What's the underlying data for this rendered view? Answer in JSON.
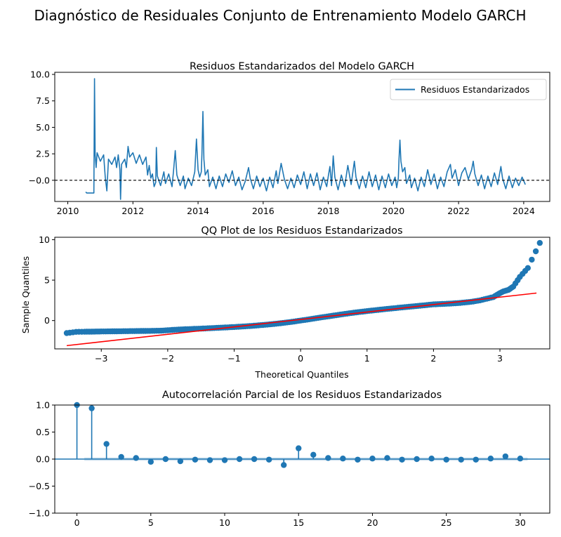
{
  "figure": {
    "suptitle": "Diagnóstico de Residuales Conjunto de Entrenamiento Modelo GARCH"
  },
  "chart_data": [
    {
      "type": "line",
      "title": "Residuos Estandarizados del Modelo GARCH",
      "xlabel": "",
      "ylabel": "",
      "xlim": [
        2009.6,
        2024.8
      ],
      "ylim": [
        -2.0,
        10.2
      ],
      "xticks": [
        "2010",
        "2012",
        "2014",
        "2016",
        "2018",
        "2020",
        "2022",
        "2024"
      ],
      "yticks": [
        "−0.0",
        "2.5",
        "5.0",
        "7.5",
        "10.0"
      ],
      "legend": {
        "position": "top-right",
        "entries": [
          "Residuos Estandarizados"
        ]
      },
      "reference_line": {
        "y": 0,
        "style": "dashed",
        "color": "#000000"
      },
      "series": [
        {
          "name": "Residuos Estandarizados",
          "color": "#1f77b4",
          "points": [
            [
              2010.55,
              -1.1
            ],
            [
              2010.58,
              -1.2
            ],
            [
              2010.8,
              -1.2
            ],
            [
              2010.82,
              9.6
            ],
            [
              2010.84,
              2.4
            ],
            [
              2010.87,
              1.2
            ],
            [
              2010.9,
              2.6
            ],
            [
              2011.0,
              1.8
            ],
            [
              2011.1,
              2.4
            ],
            [
              2011.15,
              0.3
            ],
            [
              2011.2,
              -1.0
            ],
            [
              2011.25,
              2.0
            ],
            [
              2011.35,
              1.5
            ],
            [
              2011.45,
              2.2
            ],
            [
              2011.5,
              1.2
            ],
            [
              2011.55,
              2.4
            ],
            [
              2011.6,
              1.0
            ],
            [
              2011.62,
              -1.8
            ],
            [
              2011.65,
              1.5
            ],
            [
              2011.75,
              2.0
            ],
            [
              2011.8,
              1.2
            ],
            [
              2011.85,
              3.2
            ],
            [
              2011.9,
              2.2
            ],
            [
              2012.0,
              2.6
            ],
            [
              2012.1,
              1.6
            ],
            [
              2012.2,
              2.4
            ],
            [
              2012.3,
              1.5
            ],
            [
              2012.4,
              2.2
            ],
            [
              2012.45,
              0.5
            ],
            [
              2012.5,
              1.4
            ],
            [
              2012.55,
              0.2
            ],
            [
              2012.6,
              0.6
            ],
            [
              2012.65,
              -0.6
            ],
            [
              2012.7,
              -0.2
            ],
            [
              2012.72,
              3.1
            ],
            [
              2012.75,
              0.4
            ],
            [
              2012.85,
              -0.5
            ],
            [
              2012.95,
              0.8
            ],
            [
              2013.0,
              -0.3
            ],
            [
              2013.1,
              0.6
            ],
            [
              2013.2,
              -0.6
            ],
            [
              2013.25,
              1.0
            ],
            [
              2013.3,
              2.8
            ],
            [
              2013.35,
              0.5
            ],
            [
              2013.45,
              -0.5
            ],
            [
              2013.55,
              0.4
            ],
            [
              2013.6,
              -0.8
            ],
            [
              2013.7,
              0.2
            ],
            [
              2013.8,
              -0.5
            ],
            [
              2013.9,
              0.8
            ],
            [
              2013.95,
              3.9
            ],
            [
              2014.0,
              1.0
            ],
            [
              2014.05,
              0.3
            ],
            [
              2014.1,
              0.8
            ],
            [
              2014.12,
              2.5
            ],
            [
              2014.15,
              6.5
            ],
            [
              2014.18,
              2.0
            ],
            [
              2014.22,
              0.5
            ],
            [
              2014.3,
              1.0
            ],
            [
              2014.35,
              -0.6
            ],
            [
              2014.45,
              0.3
            ],
            [
              2014.55,
              -0.8
            ],
            [
              2014.65,
              0.4
            ],
            [
              2014.75,
              -0.6
            ],
            [
              2014.85,
              0.6
            ],
            [
              2014.95,
              -0.2
            ],
            [
              2015.05,
              0.9
            ],
            [
              2015.15,
              -0.5
            ],
            [
              2015.25,
              0.3
            ],
            [
              2015.35,
              -0.9
            ],
            [
              2015.45,
              -0.1
            ],
            [
              2015.55,
              1.2
            ],
            [
              2015.6,
              0.2
            ],
            [
              2015.7,
              -0.8
            ],
            [
              2015.8,
              0.4
            ],
            [
              2015.9,
              -0.6
            ],
            [
              2016.0,
              0.2
            ],
            [
              2016.1,
              -1.0
            ],
            [
              2016.2,
              0.3
            ],
            [
              2016.3,
              -0.7
            ],
            [
              2016.4,
              0.9
            ],
            [
              2016.45,
              -0.3
            ],
            [
              2016.55,
              1.6
            ],
            [
              2016.65,
              0.1
            ],
            [
              2016.75,
              -0.8
            ],
            [
              2016.85,
              0.2
            ],
            [
              2016.95,
              -0.7
            ],
            [
              2017.05,
              0.5
            ],
            [
              2017.15,
              -0.4
            ],
            [
              2017.25,
              0.8
            ],
            [
              2017.35,
              -0.8
            ],
            [
              2017.45,
              0.6
            ],
            [
              2017.55,
              -0.5
            ],
            [
              2017.65,
              0.7
            ],
            [
              2017.75,
              -0.9
            ],
            [
              2017.85,
              0.3
            ],
            [
              2017.95,
              -0.6
            ],
            [
              2018.0,
              0.4
            ],
            [
              2018.05,
              1.3
            ],
            [
              2018.1,
              -0.5
            ],
            [
              2018.15,
              2.3
            ],
            [
              2018.2,
              0.3
            ],
            [
              2018.3,
              -0.9
            ],
            [
              2018.4,
              0.5
            ],
            [
              2018.5,
              -0.6
            ],
            [
              2018.6,
              1.4
            ],
            [
              2018.7,
              -0.4
            ],
            [
              2018.8,
              1.8
            ],
            [
              2018.85,
              0.3
            ],
            [
              2018.95,
              -0.8
            ],
            [
              2019.05,
              0.4
            ],
            [
              2019.15,
              -0.7
            ],
            [
              2019.25,
              0.8
            ],
            [
              2019.35,
              -0.6
            ],
            [
              2019.45,
              0.5
            ],
            [
              2019.55,
              -0.9
            ],
            [
              2019.65,
              0.4
            ],
            [
              2019.75,
              -0.7
            ],
            [
              2019.85,
              0.6
            ],
            [
              2019.95,
              -0.5
            ],
            [
              2020.05,
              0.3
            ],
            [
              2020.1,
              -0.7
            ],
            [
              2020.15,
              0.2
            ],
            [
              2020.17,
              2.0
            ],
            [
              2020.2,
              3.8
            ],
            [
              2020.23,
              1.8
            ],
            [
              2020.28,
              0.8
            ],
            [
              2020.35,
              1.2
            ],
            [
              2020.4,
              -0.3
            ],
            [
              2020.5,
              0.5
            ],
            [
              2020.55,
              -0.7
            ],
            [
              2020.65,
              0.2
            ],
            [
              2020.75,
              -1.0
            ],
            [
              2020.85,
              0.3
            ],
            [
              2020.95,
              -0.6
            ],
            [
              2021.05,
              1.0
            ],
            [
              2021.15,
              -0.4
            ],
            [
              2021.25,
              0.6
            ],
            [
              2021.35,
              -0.8
            ],
            [
              2021.45,
              0.3
            ],
            [
              2021.55,
              -0.6
            ],
            [
              2021.65,
              0.8
            ],
            [
              2021.75,
              1.5
            ],
            [
              2021.8,
              0.2
            ],
            [
              2021.9,
              1.0
            ],
            [
              2022.0,
              -0.5
            ],
            [
              2022.1,
              0.7
            ],
            [
              2022.2,
              1.2
            ],
            [
              2022.3,
              0.1
            ],
            [
              2022.4,
              1.0
            ],
            [
              2022.45,
              1.8
            ],
            [
              2022.5,
              0.6
            ],
            [
              2022.6,
              -0.5
            ],
            [
              2022.7,
              0.5
            ],
            [
              2022.8,
              -0.8
            ],
            [
              2022.9,
              0.4
            ],
            [
              2023.0,
              -0.6
            ],
            [
              2023.1,
              0.7
            ],
            [
              2023.2,
              -0.4
            ],
            [
              2023.3,
              1.3
            ],
            [
              2023.35,
              0.2
            ],
            [
              2023.45,
              -0.8
            ],
            [
              2023.55,
              0.4
            ],
            [
              2023.65,
              -0.7
            ],
            [
              2023.75,
              0.2
            ],
            [
              2023.85,
              -0.5
            ],
            [
              2023.95,
              0.3
            ],
            [
              2024.05,
              -0.4
            ]
          ]
        }
      ]
    },
    {
      "type": "scatter",
      "title": "QQ Plot de los Residuos Estandarizados",
      "xlabel": "Theoretical Quantiles",
      "ylabel": "Sample Quantiles",
      "xlim": [
        -3.7,
        3.75
      ],
      "ylim": [
        -3.5,
        10.3
      ],
      "xticks": [
        "−3",
        "−2",
        "−1",
        "0",
        "1",
        "2",
        "3"
      ],
      "yticks": [
        "0",
        "5",
        "10"
      ],
      "series": [
        {
          "name": "",
          "color": "#1f77b4",
          "points": [
            [
              -3.52,
              -1.55
            ],
            [
              -3.38,
              -1.4
            ],
            [
              -3.25,
              -1.38
            ],
            [
              -3.15,
              -1.37
            ],
            [
              -3.08,
              -1.36
            ],
            [
              -3.0,
              -1.35
            ],
            [
              -2.9,
              -1.34
            ],
            [
              -2.8,
              -1.33
            ],
            [
              -2.7,
              -1.32
            ],
            [
              -2.6,
              -1.31
            ],
            [
              -2.5,
              -1.3
            ],
            [
              -2.4,
              -1.29
            ],
            [
              -2.3,
              -1.28
            ],
            [
              -2.2,
              -1.27
            ],
            [
              -2.1,
              -1.25
            ],
            [
              -2.0,
              -1.2
            ],
            [
              -1.9,
              -1.14
            ],
            [
              -1.8,
              -1.1
            ],
            [
              -1.7,
              -1.06
            ],
            [
              -1.6,
              -1.03
            ],
            [
              -1.5,
              -1.0
            ],
            [
              -1.4,
              -0.96
            ],
            [
              -1.3,
              -0.92
            ],
            [
              -1.2,
              -0.88
            ],
            [
              -1.1,
              -0.84
            ],
            [
              -1.0,
              -0.8
            ],
            [
              -0.9,
              -0.75
            ],
            [
              -0.8,
              -0.7
            ],
            [
              -0.7,
              -0.64
            ],
            [
              -0.6,
              -0.57
            ],
            [
              -0.5,
              -0.5
            ],
            [
              -0.4,
              -0.42
            ],
            [
              -0.3,
              -0.33
            ],
            [
              -0.2,
              -0.23
            ],
            [
              -0.1,
              -0.12
            ],
            [
              0.0,
              0.0
            ],
            [
              0.1,
              0.12
            ],
            [
              0.2,
              0.25
            ],
            [
              0.3,
              0.38
            ],
            [
              0.4,
              0.5
            ],
            [
              0.5,
              0.62
            ],
            [
              0.6,
              0.74
            ],
            [
              0.7,
              0.86
            ],
            [
              0.8,
              0.97
            ],
            [
              0.9,
              1.07
            ],
            [
              1.0,
              1.17
            ],
            [
              1.1,
              1.26
            ],
            [
              1.2,
              1.35
            ],
            [
              1.3,
              1.44
            ],
            [
              1.4,
              1.52
            ],
            [
              1.5,
              1.6
            ],
            [
              1.6,
              1.68
            ],
            [
              1.7,
              1.76
            ],
            [
              1.8,
              1.84
            ],
            [
              1.9,
              1.92
            ],
            [
              2.0,
              2.0
            ],
            [
              2.1,
              2.04
            ],
            [
              2.2,
              2.08
            ],
            [
              2.3,
              2.12
            ],
            [
              2.4,
              2.18
            ],
            [
              2.5,
              2.26
            ],
            [
              2.6,
              2.36
            ],
            [
              2.7,
              2.5
            ],
            [
              2.8,
              2.7
            ],
            [
              2.9,
              2.9
            ],
            [
              2.98,
              3.3
            ],
            [
              3.05,
              3.6
            ],
            [
              3.13,
              3.8
            ],
            [
              3.2,
              4.2
            ],
            [
              3.3,
              5.4
            ],
            [
              3.42,
              6.5
            ],
            [
              3.6,
              9.6
            ]
          ]
        }
      ],
      "reference_line": {
        "color": "#ff0000",
        "from": [
          -3.52,
          -3.1
        ],
        "to": [
          3.55,
          3.4
        ]
      }
    },
    {
      "type": "stem",
      "title": "Autocorrelación Parcial de los Residuos Estandarizados",
      "xlabel": "",
      "ylabel": "",
      "xlim": [
        -1.5,
        32
      ],
      "ylim": [
        -1.0,
        1.0
      ],
      "xticks": [
        "0",
        "5",
        "10",
        "15",
        "20",
        "25",
        "30"
      ],
      "yticks": [
        "−1.0",
        "−0.5",
        "0.0",
        "0.5",
        "1.0"
      ],
      "confidence_band": 0.03,
      "color": "#1f77b4",
      "lags": [
        0,
        1,
        2,
        3,
        4,
        5,
        6,
        7,
        8,
        9,
        10,
        11,
        12,
        13,
        14,
        15,
        16,
        17,
        18,
        19,
        20,
        21,
        22,
        23,
        24,
        25,
        26,
        27,
        28,
        29,
        30
      ],
      "values": [
        1.0,
        0.94,
        0.28,
        0.04,
        0.02,
        -0.05,
        0.0,
        -0.04,
        -0.01,
        -0.02,
        -0.02,
        0.0,
        0.0,
        -0.01,
        -0.11,
        0.2,
        0.08,
        0.02,
        0.01,
        -0.01,
        0.01,
        0.02,
        -0.01,
        0.0,
        0.01,
        -0.01,
        -0.01,
        -0.01,
        0.01,
        0.05,
        0.01
      ]
    }
  ]
}
